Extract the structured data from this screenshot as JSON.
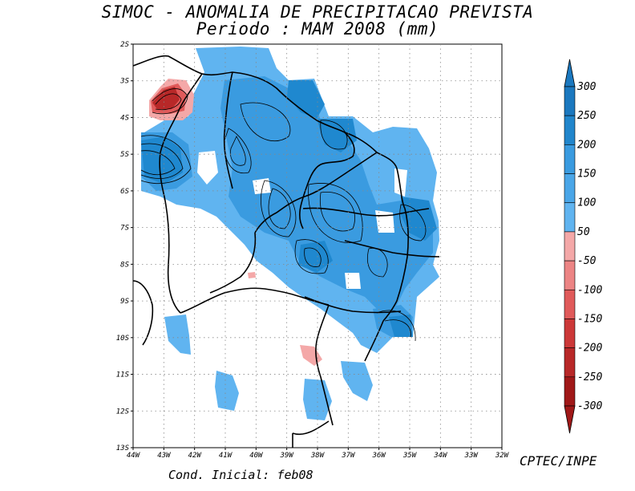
{
  "title": "SIMOC -  ANOMALIA DE PRECIPITACAO PREVISTA",
  "subtitle": "Periodo : MAM 2008 (mm)",
  "credit": "CPTEC/INPE",
  "initial_condition": "Cond. Inicial: feb08",
  "colors": {
    "pos_100_150": "#60b0f0",
    "pos_150_200": "#3a9be0",
    "pos_200_250": "#1f88cf",
    "neg_50_100": "#f4a8a8",
    "neg_100_150": "#ec7878",
    "neg_150_200": "#e05050",
    "neg_200_250": "#cc3030",
    "neg_250_300": "#b02020"
  },
  "chart_data": {
    "type": "heatmap",
    "x_ticks": [
      "44W",
      "43W",
      "42W",
      "41W",
      "40W",
      "39W",
      "38W",
      "37W",
      "36W",
      "35W",
      "34W",
      "33W",
      "32W"
    ],
    "y_ticks": [
      "2S",
      "3S",
      "4S",
      "5S",
      "6S",
      "7S",
      "8S",
      "9S",
      "10S",
      "11S",
      "12S",
      "13S"
    ],
    "xlim": [
      -44,
      -32
    ],
    "ylim": [
      -13,
      -2
    ],
    "grid": true,
    "legend": {
      "position": "right",
      "labels": [
        "300",
        "250",
        "200",
        "150",
        "100",
        "50",
        "-50",
        "-100",
        "-150",
        "-200",
        "-250",
        "-300"
      ],
      "colors": [
        "#1b78bf",
        "#2186cc",
        "#3a9be0",
        "#4aa6e8",
        "#60b4f0",
        "#ffffff",
        "#f4a8a8",
        "#ec8484",
        "#e05a5a",
        "#cc3838",
        "#b82828",
        "#a01818"
      ]
    }
  }
}
